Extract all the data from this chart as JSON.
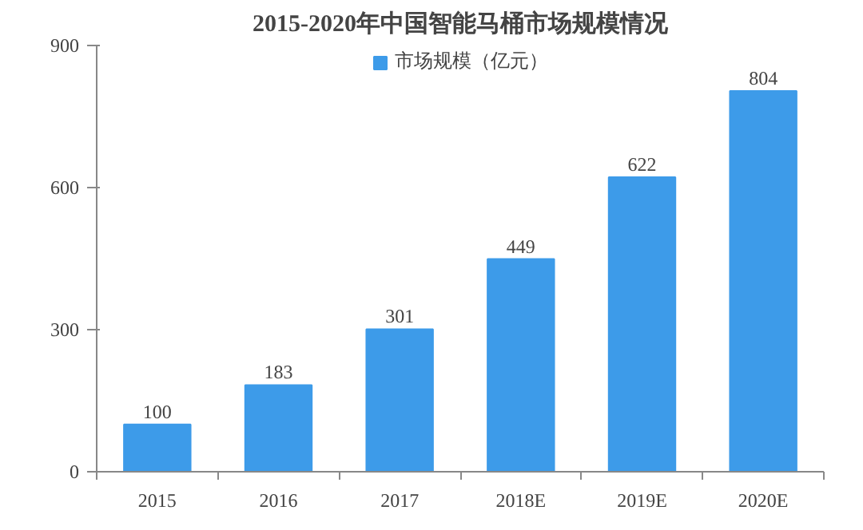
{
  "chart_data": {
    "type": "bar",
    "title": "2015-2020年中国智能马桶市场规模情况",
    "categories": [
      "2015",
      "2016",
      "2017",
      "2018E",
      "2019E",
      "2020E"
    ],
    "series": [
      {
        "name": "市场规模（亿元）",
        "color": "#3d9be9",
        "values": [
          100,
          183,
          301,
          449,
          622,
          804
        ]
      }
    ],
    "ylim": [
      0,
      900
    ],
    "yticks": [
      0,
      300,
      600,
      900
    ],
    "grid": false,
    "legend": "top",
    "data_labels": true
  }
}
